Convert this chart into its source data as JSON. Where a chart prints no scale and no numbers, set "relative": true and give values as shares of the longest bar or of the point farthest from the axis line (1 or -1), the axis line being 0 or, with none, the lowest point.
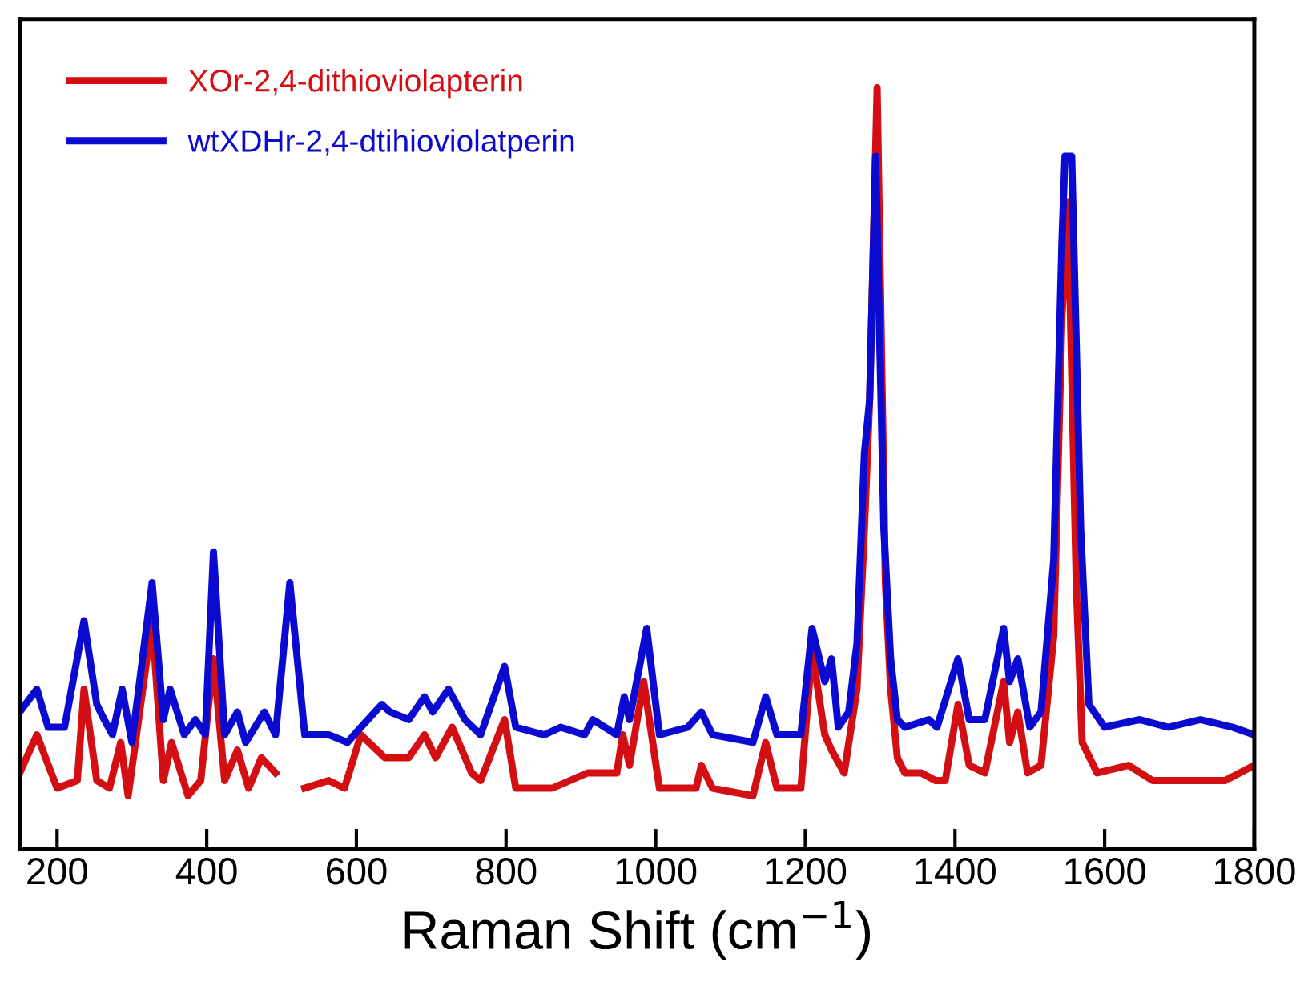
{
  "chart_data": {
    "type": "line",
    "relative": true,
    "xlabel": "Raman Shift (cm$^{−1}$)",
    "xlim": [
      150,
      1800
    ],
    "xticks": [
      200,
      400,
      600,
      800,
      1000,
      1200,
      1400,
      1600,
      1800
    ],
    "legend": "top left",
    "grid": false,
    "series": [
      {
        "name": "XOr-2,4-dithioviolapterin",
        "color": "#d40f14",
        "x": [
          150,
          173,
          200,
          227,
          236,
          253,
          270,
          285,
          295,
          327,
          342,
          353,
          375,
          392,
          409,
          424,
          441,
          456,
          473,
          492,
          511,
          531,
          563,
          584,
          606,
          638,
          670,
          691,
          706,
          728,
          754,
          766,
          798,
          813,
          862,
          909,
          948,
          956,
          965,
          984,
          1005,
          1054,
          1061,
          1076,
          1130,
          1147,
          1162,
          1194,
          1209,
          1226,
          1235,
          1252,
          1269,
          1279,
          1286,
          1296,
          1307,
          1314,
          1323,
          1333,
          1355,
          1374,
          1387,
          1404,
          1419,
          1440,
          1465,
          1473,
          1484,
          1497,
          1515,
          1532,
          1543,
          1551,
          1562,
          1570,
          1590,
          1632,
          1664,
          1728,
          1761,
          1800
        ],
        "values": [
          0.1,
          0.15,
          0.08,
          0.09,
          0.21,
          0.09,
          0.08,
          0.14,
          0.07,
          0.3,
          0.09,
          0.14,
          0.07,
          0.09,
          0.25,
          0.09,
          0.13,
          0.08,
          0.12,
          0.1,
          null,
          0.08,
          0.09,
          0.08,
          0.15,
          0.12,
          0.12,
          0.15,
          0.12,
          0.16,
          0.1,
          0.09,
          0.17,
          0.08,
          0.08,
          0.1,
          0.1,
          0.15,
          0.11,
          0.22,
          0.08,
          0.08,
          0.11,
          0.08,
          0.07,
          0.14,
          0.08,
          0.08,
          0.26,
          0.15,
          0.13,
          0.1,
          0.21,
          0.42,
          0.59,
          1.0,
          0.35,
          0.21,
          0.12,
          0.1,
          0.1,
          0.09,
          0.09,
          0.19,
          0.11,
          0.1,
          0.22,
          0.14,
          0.18,
          0.1,
          0.11,
          0.28,
          0.7,
          0.85,
          0.35,
          0.14,
          0.1,
          0.11,
          0.09,
          0.09,
          0.09,
          0.11
        ]
      },
      {
        "name": "wtXDHr-2,4-dtihioviolatperin",
        "color": "#0a0ad0",
        "x": [
          150,
          173,
          188,
          210,
          236,
          253,
          263,
          274,
          287,
          300,
          327,
          342,
          351,
          370,
          385,
          398,
          409,
          424,
          441,
          452,
          477,
          492,
          511,
          531,
          563,
          588,
          606,
          634,
          645,
          670,
          691,
          702,
          723,
          745,
          766,
          798,
          813,
          851,
          873,
          905,
          916,
          948,
          958,
          965,
          988,
          1005,
          1043,
          1061,
          1076,
          1130,
          1147,
          1162,
          1194,
          1209,
          1226,
          1235,
          1244,
          1258,
          1269,
          1279,
          1286,
          1294,
          1305,
          1314,
          1323,
          1333,
          1365,
          1376,
          1404,
          1419,
          1440,
          1465,
          1473,
          1484,
          1500,
          1515,
          1532,
          1543,
          1547,
          1556,
          1568,
          1579,
          1600,
          1647,
          1685,
          1728,
          1771,
          1800
        ],
        "values": [
          0.18,
          0.21,
          0.16,
          0.16,
          0.3,
          0.19,
          0.17,
          0.15,
          0.21,
          0.14,
          0.35,
          0.17,
          0.21,
          0.15,
          0.17,
          0.15,
          0.39,
          0.15,
          0.18,
          0.14,
          0.18,
          0.15,
          0.35,
          0.15,
          0.15,
          0.14,
          0.16,
          0.19,
          0.18,
          0.17,
          0.2,
          0.18,
          0.21,
          0.17,
          0.15,
          0.24,
          0.16,
          0.15,
          0.16,
          0.15,
          0.17,
          0.15,
          0.2,
          0.17,
          0.29,
          0.15,
          0.16,
          0.18,
          0.15,
          0.14,
          0.2,
          0.15,
          0.15,
          0.29,
          0.22,
          0.25,
          0.16,
          0.18,
          0.27,
          0.52,
          0.59,
          0.91,
          0.42,
          0.25,
          0.17,
          0.16,
          0.17,
          0.16,
          0.25,
          0.17,
          0.17,
          0.29,
          0.22,
          0.25,
          0.16,
          0.18,
          0.38,
          0.8,
          0.91,
          0.91,
          0.42,
          0.19,
          0.16,
          0.17,
          0.16,
          0.17,
          0.16,
          0.15
        ]
      }
    ]
  }
}
